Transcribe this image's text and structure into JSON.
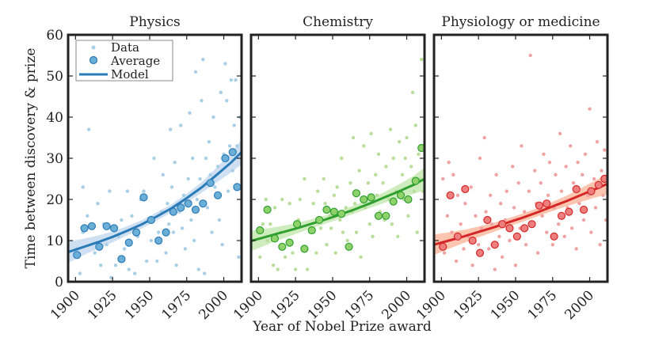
{
  "figure": {
    "ylabel": "Time between discovery & prize",
    "xlabel": "Year of Nobel Prize award",
    "xlim": [
      1895,
      2012
    ],
    "ylim": [
      0,
      60
    ],
    "y_ticks": [
      0,
      10,
      20,
      30,
      40,
      50,
      60
    ],
    "x_ticks": [
      1900,
      1925,
      1950,
      1975,
      2000
    ],
    "legend": {
      "data": "Data",
      "average": "Average",
      "model": "Model"
    }
  },
  "chart_data": [
    {
      "type": "scatter",
      "title": "Physics",
      "colors": {
        "points": "#a9cfe6",
        "average": "#6baed6",
        "line": "#2b7bb9",
        "band": "#c6dbef"
      },
      "data_points": [
        [
          1901,
          8
        ],
        [
          1903,
          2
        ],
        [
          1905,
          12
        ],
        [
          1905,
          23
        ],
        [
          1908,
          16
        ],
        [
          1909,
          37
        ],
        [
          1911,
          14
        ],
        [
          1913,
          7
        ],
        [
          1915,
          19
        ],
        [
          1917,
          4
        ],
        [
          1919,
          14
        ],
        [
          1921,
          9
        ],
        [
          1923,
          22
        ],
        [
          1924,
          1
        ],
        [
          1927,
          4
        ],
        [
          1929,
          11
        ],
        [
          1931,
          15
        ],
        [
          1933,
          8
        ],
        [
          1935,
          22
        ],
        [
          1936,
          3
        ],
        [
          1938,
          16
        ],
        [
          1940,
          2
        ],
        [
          1942,
          11
        ],
        [
          1944,
          20
        ],
        [
          1946,
          22
        ],
        [
          1948,
          5
        ],
        [
          1951,
          10
        ],
        [
          1952,
          15
        ],
        [
          1953,
          30
        ],
        [
          1955,
          5
        ],
        [
          1956,
          12
        ],
        [
          1958,
          17
        ],
        [
          1959,
          26
        ],
        [
          1961,
          7
        ],
        [
          1962,
          19
        ],
        [
          1963,
          14
        ],
        [
          1964,
          37
        ],
        [
          1965,
          23
        ],
        [
          1966,
          12
        ],
        [
          1967,
          29
        ],
        [
          1968,
          4
        ],
        [
          1970,
          17
        ],
        [
          1971,
          38
        ],
        [
          1972,
          13
        ],
        [
          1973,
          21
        ],
        [
          1974,
          8
        ],
        [
          1976,
          25
        ],
        [
          1977,
          41
        ],
        [
          1978,
          15
        ],
        [
          1979,
          30
        ],
        [
          1980,
          10
        ],
        [
          1981,
          51
        ],
        [
          1982,
          20
        ],
        [
          1983,
          3
        ],
        [
          1984,
          25
        ],
        [
          1985,
          44
        ],
        [
          1986,
          54
        ],
        [
          1987,
          2
        ],
        [
          1988,
          30
        ],
        [
          1989,
          18
        ],
        [
          1990,
          34
        ],
        [
          1991,
          26
        ],
        [
          1992,
          12
        ],
        [
          1993,
          40
        ],
        [
          1994,
          23
        ],
        [
          1995,
          21
        ],
        [
          1996,
          28
        ],
        [
          1997,
          15
        ],
        [
          1998,
          46
        ],
        [
          1999,
          9
        ],
        [
          2000,
          31
        ],
        [
          2001,
          53
        ],
        [
          2002,
          44
        ],
        [
          2003,
          22
        ],
        [
          2004,
          33
        ],
        [
          2005,
          49
        ],
        [
          2006,
          27
        ],
        [
          2007,
          38
        ],
        [
          2008,
          49
        ],
        [
          2009,
          33
        ],
        [
          2010,
          6
        ],
        [
          2011,
          40
        ]
      ],
      "average_x": [
        1901,
        1906,
        1911,
        1916,
        1921,
        1926,
        1931,
        1936,
        1941,
        1946,
        1951,
        1956,
        1961,
        1966,
        1971,
        1976,
        1981,
        1986,
        1991,
        1996,
        2001,
        2006,
        2009
      ],
      "average_y": [
        6.5,
        13,
        13.5,
        8.5,
        13.5,
        13,
        5.5,
        9.5,
        12,
        20.5,
        15,
        10,
        12,
        17,
        18,
        19,
        17.5,
        19,
        24,
        21,
        30,
        31.5,
        23
      ],
      "model_x": [
        1895,
        1905,
        1915,
        1925,
        1935,
        1945,
        1955,
        1965,
        1975,
        1985,
        1995,
        2005,
        2012
      ],
      "model_y": [
        7.2,
        8.4,
        9.6,
        10.9,
        12.4,
        14.0,
        15.9,
        17.9,
        20.3,
        22.9,
        25.9,
        29.0,
        31.5
      ],
      "band_halfwidth": [
        2.6,
        2.0,
        1.6,
        1.3,
        1.1,
        1.0,
        1.0,
        1.0,
        1.1,
        1.3,
        1.8,
        2.4,
        3.0
      ]
    },
    {
      "type": "scatter",
      "title": "Chemistry",
      "colors": {
        "points": "#b8de9a",
        "average": "#8fd16a",
        "line": "#2fa02f",
        "band": "#c7e9b4"
      },
      "data_points": [
        [
          1901,
          6
        ],
        [
          1903,
          14
        ],
        [
          1905,
          20
        ],
        [
          1906,
          10
        ],
        [
          1908,
          14
        ],
        [
          1910,
          4
        ],
        [
          1911,
          18
        ],
        [
          1913,
          3
        ],
        [
          1915,
          12
        ],
        [
          1916,
          20
        ],
        [
          1918,
          6
        ],
        [
          1920,
          10
        ],
        [
          1921,
          19
        ],
        [
          1923,
          7
        ],
        [
          1925,
          3
        ],
        [
          1927,
          15
        ],
        [
          1928,
          20
        ],
        [
          1930,
          8
        ],
        [
          1931,
          25
        ],
        [
          1933,
          3
        ],
        [
          1935,
          12
        ],
        [
          1937,
          19
        ],
        [
          1939,
          7
        ],
        [
          1940,
          22
        ],
        [
          1942,
          13
        ],
        [
          1944,
          25
        ],
        [
          1945,
          19
        ],
        [
          1946,
          9
        ],
        [
          1948,
          16
        ],
        [
          1949,
          13
        ],
        [
          1951,
          21
        ],
        [
          1952,
          7
        ],
        [
          1953,
          23
        ],
        [
          1955,
          15
        ],
        [
          1956,
          30
        ],
        [
          1957,
          12
        ],
        [
          1959,
          18
        ],
        [
          1960,
          10
        ],
        [
          1962,
          24
        ],
        [
          1963,
          17
        ],
        [
          1964,
          35
        ],
        [
          1965,
          19
        ],
        [
          1966,
          12
        ],
        [
          1968,
          27
        ],
        [
          1969,
          6
        ],
        [
          1970,
          20
        ],
        [
          1971,
          33
        ],
        [
          1972,
          18
        ],
        [
          1974,
          24
        ],
        [
          1975,
          14
        ],
        [
          1976,
          36
        ],
        [
          1977,
          11
        ],
        [
          1979,
          26
        ],
        [
          1980,
          21
        ],
        [
          1981,
          31
        ],
        [
          1982,
          17
        ],
        [
          1984,
          24
        ],
        [
          1985,
          15
        ],
        [
          1986,
          28
        ],
        [
          1988,
          20
        ],
        [
          1989,
          37
        ],
        [
          1990,
          14
        ],
        [
          1991,
          30
        ],
        [
          1993,
          22
        ],
        [
          1994,
          11
        ],
        [
          1995,
          34
        ],
        [
          1997,
          26
        ],
        [
          1998,
          20
        ],
        [
          1999,
          30
        ],
        [
          2000,
          35
        ],
        [
          2001,
          16
        ],
        [
          2003,
          28
        ],
        [
          2004,
          46
        ],
        [
          2005,
          22
        ],
        [
          2006,
          38
        ],
        [
          2007,
          12
        ],
        [
          2008,
          31
        ],
        [
          2009,
          25
        ],
        [
          2010,
          54
        ],
        [
          2011,
          22
        ]
      ],
      "average_x": [
        1901,
        1906,
        1911,
        1916,
        1921,
        1926,
        1931,
        1936,
        1941,
        1946,
        1951,
        1956,
        1961,
        1966,
        1971,
        1976,
        1981,
        1986,
        1991,
        1996,
        2001,
        2006,
        2010
      ],
      "average_y": [
        12.5,
        17.5,
        10.5,
        8.5,
        9.5,
        14,
        8,
        12.5,
        15,
        17.5,
        17,
        16.5,
        8.5,
        21.5,
        20,
        20.5,
        16,
        16,
        19.5,
        21,
        20,
        24.5,
        32.5
      ],
      "model_x": [
        1895,
        1905,
        1915,
        1925,
        1935,
        1945,
        1955,
        1965,
        1975,
        1985,
        1995,
        2005,
        2012
      ],
      "model_y": [
        9.9,
        10.9,
        11.9,
        12.9,
        14.0,
        15.1,
        16.3,
        17.6,
        19.0,
        20.5,
        22.0,
        23.6,
        25.0
      ],
      "band_halfwidth": [
        2.5,
        2.0,
        1.6,
        1.3,
        1.1,
        1.0,
        1.0,
        1.0,
        1.1,
        1.3,
        1.7,
        2.2,
        2.8
      ]
    },
    {
      "type": "scatter",
      "title": "Physiology or medicine",
      "colors": {
        "points": "#f1a3a3",
        "average": "#ee7f7f",
        "line": "#d62728",
        "band": "#fcbba1"
      },
      "data_points": [
        [
          1901,
          25
        ],
        [
          1902,
          7
        ],
        [
          1904,
          16
        ],
        [
          1905,
          29
        ],
        [
          1907,
          12
        ],
        [
          1908,
          26
        ],
        [
          1910,
          5
        ],
        [
          1911,
          21
        ],
        [
          1913,
          14
        ],
        [
          1915,
          8
        ],
        [
          1916,
          19
        ],
        [
          1918,
          11
        ],
        [
          1920,
          23
        ],
        [
          1921,
          4
        ],
        [
          1923,
          16
        ],
        [
          1925,
          9
        ],
        [
          1926,
          30
        ],
        [
          1927,
          13
        ],
        [
          1929,
          35
        ],
        [
          1930,
          17
        ],
        [
          1932,
          8
        ],
        [
          1933,
          21
        ],
        [
          1934,
          14
        ],
        [
          1936,
          3
        ],
        [
          1937,
          26
        ],
        [
          1939,
          11
        ],
        [
          1940,
          19
        ],
        [
          1941,
          6
        ],
        [
          1943,
          15
        ],
        [
          1944,
          22
        ],
        [
          1946,
          10
        ],
        [
          1948,
          28
        ],
        [
          1949,
          18
        ],
        [
          1950,
          4
        ],
        [
          1952,
          24
        ],
        [
          1953,
          13
        ],
        [
          1954,
          33
        ],
        [
          1956,
          17
        ],
        [
          1957,
          9
        ],
        [
          1959,
          22
        ],
        [
          1960,
          55
        ],
        [
          1961,
          14
        ],
        [
          1963,
          27
        ],
        [
          1964,
          19
        ],
        [
          1965,
          7
        ],
        [
          1967,
          24
        ],
        [
          1968,
          16
        ],
        [
          1969,
          31
        ],
        [
          1971,
          12
        ],
        [
          1972,
          21
        ],
        [
          1973,
          29
        ],
        [
          1975,
          9
        ],
        [
          1976,
          18
        ],
        [
          1977,
          26
        ],
        [
          1979,
          14
        ],
        [
          1980,
          36
        ],
        [
          1981,
          22
        ],
        [
          1983,
          11
        ],
        [
          1984,
          28
        ],
        [
          1985,
          18
        ],
        [
          1987,
          33
        ],
        [
          1988,
          13
        ],
        [
          1989,
          24
        ],
        [
          1991,
          8
        ],
        [
          1992,
          29
        ],
        [
          1993,
          19
        ],
        [
          1995,
          26
        ],
        [
          1996,
          15
        ],
        [
          1997,
          31
        ],
        [
          1999,
          21
        ],
        [
          2000,
          42
        ],
        [
          2001,
          12
        ],
        [
          2003,
          25
        ],
        [
          2004,
          18
        ],
        [
          2005,
          34
        ],
        [
          2007,
          9
        ],
        [
          2008,
          27
        ],
        [
          2009,
          21
        ],
        [
          2010,
          32
        ],
        [
          2011,
          15
        ]
      ],
      "average_x": [
        1901,
        1906,
        1911,
        1916,
        1921,
        1926,
        1931,
        1936,
        1941,
        1946,
        1951,
        1956,
        1961,
        1966,
        1971,
        1976,
        1981,
        1986,
        1991,
        1996,
        2001,
        2006,
        2010
      ],
      "average_y": [
        8.5,
        21,
        11,
        22.5,
        10,
        7,
        15,
        9,
        14,
        13,
        11,
        13,
        14,
        18.5,
        19,
        11,
        16,
        17,
        22.5,
        17.5,
        22,
        23.5,
        25
      ],
      "model_x": [
        1895,
        1905,
        1915,
        1925,
        1935,
        1945,
        1955,
        1965,
        1975,
        1985,
        1995,
        2005,
        2012
      ],
      "model_y": [
        9.0,
        10.0,
        11.0,
        12.1,
        13.2,
        14.4,
        15.6,
        16.9,
        18.3,
        19.7,
        21.2,
        22.7,
        23.8
      ],
      "band_halfwidth": [
        2.5,
        2.0,
        1.6,
        1.3,
        1.1,
        1.0,
        1.0,
        1.0,
        1.1,
        1.3,
        1.7,
        2.1,
        2.6
      ]
    }
  ]
}
